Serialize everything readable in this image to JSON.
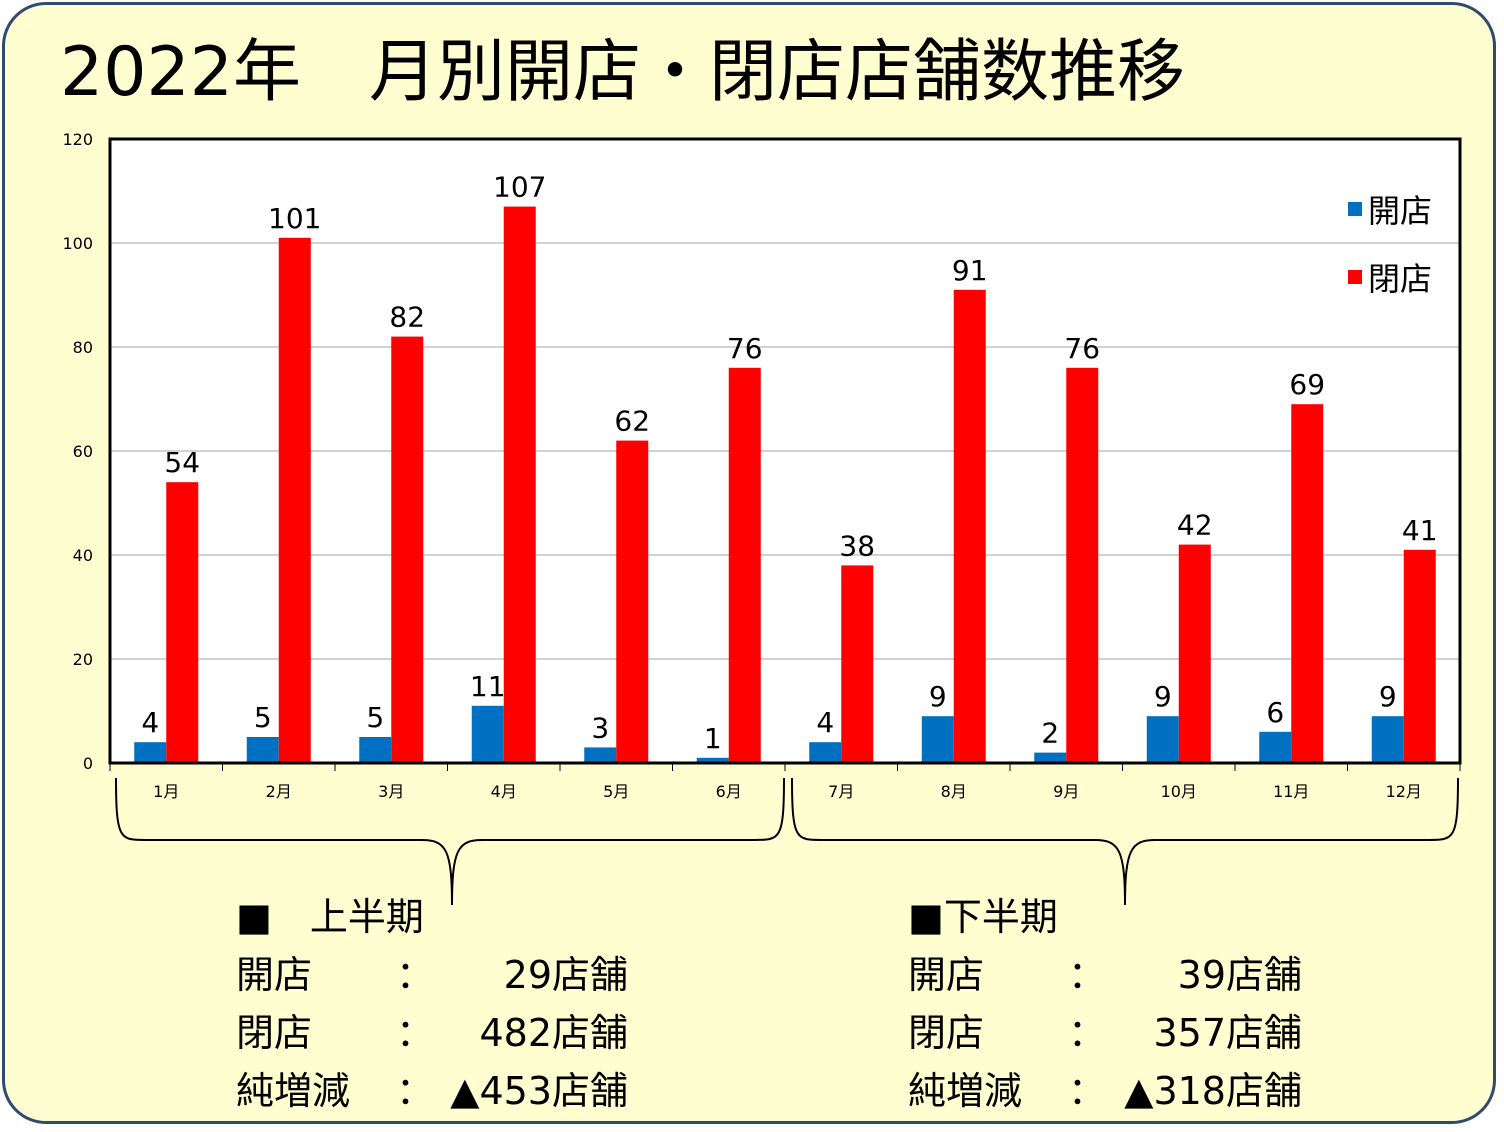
{
  "title": "2022年　月別開店・閉店店舗数推移",
  "chart_data": {
    "type": "bar",
    "categories": [
      "1月",
      "2月",
      "3月",
      "4月",
      "5月",
      "6月",
      "7月",
      "8月",
      "9月",
      "10月",
      "11月",
      "12月"
    ],
    "series": [
      {
        "name": "開店",
        "color": "#0070c0",
        "values": [
          4,
          5,
          5,
          11,
          3,
          1,
          4,
          9,
          2,
          9,
          6,
          9
        ]
      },
      {
        "name": "閉店",
        "color": "#ff0000",
        "values": [
          54,
          101,
          82,
          107,
          62,
          76,
          38,
          91,
          76,
          42,
          69,
          41
        ]
      }
    ],
    "ylim": [
      0,
      120
    ],
    "yticks": [
      0,
      20,
      40,
      60,
      80,
      100,
      120
    ],
    "grid": true,
    "legend": "top-right",
    "xlabel": "",
    "ylabel": ""
  },
  "summary": [
    {
      "heading": "■　上半期",
      "rows": [
        {
          "label": "開店",
          "colon": "：",
          "value": "29店舗"
        },
        {
          "label": "閉店",
          "colon": "：",
          "value": "482店舗"
        },
        {
          "label": "純増減",
          "colon": "：",
          "value": "▲453店舗"
        }
      ]
    },
    {
      "heading": "■下半期",
      "rows": [
        {
          "label": "開店",
          "colon": "：",
          "value": "39店舗"
        },
        {
          "label": "閉店",
          "colon": "：",
          "value": "357店舗"
        },
        {
          "label": "純増減",
          "colon": "：",
          "value": "▲318店舗"
        }
      ]
    }
  ]
}
